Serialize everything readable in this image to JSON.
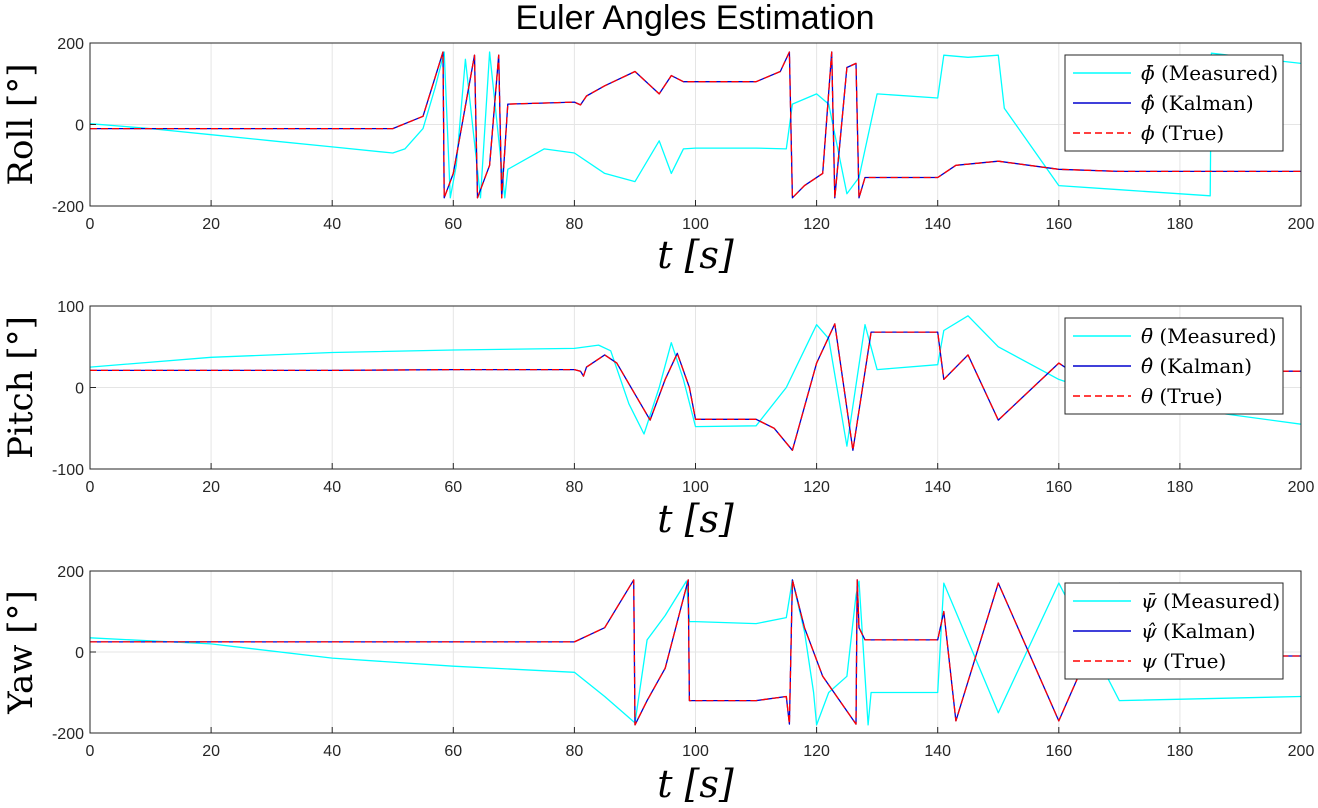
{
  "figure_title": "Euler Angles Estimation",
  "colors": {
    "measured": "#00ffff",
    "kalman": "#0000cd",
    "true": "#ff0000",
    "grid": "#e5e5e5",
    "axis": "#262626"
  },
  "chart_data": [
    {
      "type": "line",
      "title": "Euler Angles Estimation",
      "xlabel": "t [s]",
      "ylabel": "Roll [°]",
      "xlim": [
        0,
        200
      ],
      "ylim": [
        -200,
        200
      ],
      "xticks": [
        0,
        20,
        40,
        60,
        80,
        100,
        120,
        140,
        160,
        180,
        200
      ],
      "yticks": [
        -200,
        0,
        200
      ],
      "grid": true,
      "legend_position": "top-right",
      "series": [
        {
          "name": "ϕ̄ (Measured)",
          "symbol": "ϕ",
          "accent": "̄",
          "text": " (Measured)",
          "style": "measured",
          "x": [
            0,
            10,
            20,
            30,
            40,
            50,
            52,
            55,
            57,
            58.5,
            59.5,
            60.5,
            62,
            64.5,
            66,
            68.5,
            69,
            75,
            80,
            85,
            90,
            94,
            96,
            98,
            100,
            110,
            115,
            116,
            120,
            122,
            125,
            127,
            130,
            140,
            141,
            145,
            150,
            151,
            160,
            170,
            185,
            185.2,
            200
          ],
          "y": [
            2,
            -10,
            -25,
            -40,
            -55,
            -70,
            -60,
            -10,
            90,
            178,
            -180,
            -100,
            160,
            -180,
            178,
            -180,
            -110,
            -60,
            -70,
            -120,
            -140,
            -40,
            -120,
            -60,
            -58,
            -58,
            -60,
            50,
            75,
            50,
            -170,
            -130,
            75,
            65,
            170,
            165,
            170,
            40,
            -150,
            -160,
            -175,
            175,
            150
          ]
        },
        {
          "name": "ϕ̂ (Kalman)",
          "symbol": "ϕ",
          "accent": "̂",
          "text": " (Kalman)",
          "style": "kalman",
          "x": [
            0,
            20,
            40,
            50,
            55,
            58.3,
            58.5,
            60,
            63.5,
            64,
            66,
            67.5,
            68,
            69,
            80,
            81,
            82,
            85,
            90,
            94,
            96,
            98,
            100,
            110,
            114,
            115.5,
            116,
            118,
            121,
            122.5,
            123,
            125,
            126.5,
            127,
            128,
            130,
            140,
            141,
            143,
            150,
            160,
            170,
            175,
            200
          ],
          "y": [
            -10,
            -10,
            -10,
            -10,
            20,
            178,
            -180,
            -120,
            170,
            -180,
            -100,
            170,
            -180,
            50,
            55,
            48,
            70,
            95,
            130,
            75,
            120,
            105,
            105,
            105,
            130,
            178,
            -180,
            -150,
            -120,
            178,
            -180,
            140,
            150,
            -180,
            -130,
            -130,
            -130,
            -120,
            -100,
            -90,
            -110,
            -115,
            -115,
            -115
          ]
        },
        {
          "name": "ϕ (True)",
          "symbol": "ϕ",
          "accent": "",
          "text": " (True)",
          "style": "true",
          "x": [
            0,
            20,
            40,
            50,
            55,
            58.3,
            58.5,
            60,
            63.5,
            64,
            66,
            67.5,
            68,
            69,
            80,
            81,
            82,
            85,
            90,
            94,
            96,
            98,
            100,
            110,
            114,
            115.5,
            116,
            118,
            121,
            122.5,
            123,
            125,
            126.5,
            127,
            128,
            130,
            140,
            141,
            143,
            150,
            160,
            170,
            175,
            200
          ],
          "y": [
            -10,
            -10,
            -10,
            -10,
            20,
            178,
            -180,
            -120,
            170,
            -180,
            -100,
            170,
            -180,
            50,
            55,
            48,
            70,
            95,
            130,
            75,
            120,
            105,
            105,
            105,
            130,
            178,
            -180,
            -150,
            -120,
            178,
            -180,
            140,
            150,
            -180,
            -130,
            -130,
            -130,
            -120,
            -100,
            -90,
            -110,
            -115,
            -115,
            -115
          ]
        }
      ]
    },
    {
      "type": "line",
      "xlabel": "t [s]",
      "ylabel": "Pitch [°]",
      "xlim": [
        0,
        200
      ],
      "ylim": [
        -100,
        100
      ],
      "xticks": [
        0,
        20,
        40,
        60,
        80,
        100,
        120,
        140,
        160,
        180,
        200
      ],
      "yticks": [
        -100,
        0,
        100
      ],
      "grid": true,
      "legend_position": "top-right",
      "series": [
        {
          "name": "θ̄ (Measured)",
          "symbol": "θ",
          "accent": "̄",
          "text": " (Measured)",
          "style": "measured",
          "x": [
            0,
            20,
            40,
            60,
            80,
            84,
            86,
            89,
            91.5,
            94,
            96,
            98,
            100,
            110,
            115,
            120,
            122,
            125,
            128,
            130,
            140,
            141,
            145,
            150,
            160,
            170,
            200
          ],
          "y": [
            25,
            37,
            43,
            46,
            48,
            52,
            45,
            -20,
            -57,
            0,
            55,
            10,
            -48,
            -47,
            0,
            77,
            60,
            -72,
            77,
            22,
            28,
            70,
            88,
            50,
            10,
            -15,
            -45
          ]
        },
        {
          "name": "θ̂ (Kalman)",
          "symbol": "θ",
          "accent": "̂",
          "text": " (Kalman)",
          "style": "kalman",
          "x": [
            0,
            20,
            40,
            60,
            80,
            81,
            81.5,
            82,
            85,
            87,
            92.5,
            95,
            97,
            99,
            100,
            110,
            113,
            116,
            120,
            123,
            126,
            129,
            130,
            140,
            141,
            145,
            150,
            160,
            170,
            175,
            200
          ],
          "y": [
            21,
            21,
            21,
            22,
            22,
            20,
            14,
            25,
            40,
            30,
            -40,
            10,
            42,
            0,
            -39,
            -39,
            -50,
            -77,
            30,
            78,
            -77,
            68,
            68,
            68,
            10,
            40,
            -40,
            30,
            -20,
            20,
            20
          ]
        },
        {
          "name": "θ (True)",
          "symbol": "θ",
          "accent": "",
          "text": " (True)",
          "style": "true",
          "x": [
            0,
            20,
            40,
            60,
            80,
            81,
            81.5,
            82,
            85,
            87,
            92.5,
            95,
            97,
            99,
            100,
            110,
            113,
            116,
            120,
            123,
            126,
            129,
            130,
            140,
            141,
            145,
            150,
            160,
            170,
            175,
            200
          ],
          "y": [
            21,
            21,
            21,
            22,
            22,
            20,
            14,
            25,
            40,
            30,
            -40,
            10,
            42,
            0,
            -39,
            -39,
            -50,
            -77,
            30,
            78,
            -77,
            68,
            68,
            68,
            10,
            40,
            -40,
            30,
            -20,
            20,
            20
          ]
        }
      ]
    },
    {
      "type": "line",
      "xlabel": "t [s]",
      "ylabel": "Yaw [°]",
      "xlim": [
        0,
        200
      ],
      "ylim": [
        -200,
        200
      ],
      "xticks": [
        0,
        20,
        40,
        60,
        80,
        100,
        120,
        140,
        160,
        180,
        200
      ],
      "yticks": [
        -200,
        0,
        200
      ],
      "grid": true,
      "legend_position": "top-right",
      "series": [
        {
          "name": "ψ̄ (Measured)",
          "symbol": "ψ",
          "accent": "̄",
          "text": " (Measured)",
          "style": "measured",
          "x": [
            0,
            20,
            40,
            60,
            80,
            85,
            90,
            92,
            95,
            98.5,
            99,
            100,
            110,
            115,
            116,
            118,
            119.5,
            120,
            122,
            125,
            126.5,
            127,
            128.5,
            129,
            130,
            140,
            141,
            150,
            160,
            170,
            200
          ],
          "y": [
            35,
            20,
            -15,
            -35,
            -50,
            -110,
            -175,
            30,
            90,
            175,
            75,
            75,
            70,
            85,
            178,
            50,
            -100,
            -180,
            -100,
            -60,
            140,
            175,
            -180,
            -100,
            -100,
            -100,
            170,
            -150,
            170,
            -120,
            -110
          ]
        },
        {
          "name": "ψ̂ (Kalman)",
          "symbol": "ψ",
          "accent": "̂",
          "text": " (Kalman)",
          "style": "kalman",
          "x": [
            0,
            20,
            40,
            60,
            80,
            85,
            89.8,
            90,
            92,
            95,
            98.8,
            99,
            100,
            110,
            115,
            115.5,
            116,
            118,
            121,
            126.5,
            126.7,
            127,
            128,
            130,
            140,
            141,
            143,
            150,
            160,
            170,
            175,
            200
          ],
          "y": [
            25,
            25,
            25,
            25,
            25,
            60,
            178,
            -180,
            -120,
            -40,
            178,
            -120,
            -120,
            -120,
            -110,
            -178,
            178,
            60,
            -60,
            -178,
            178,
            60,
            30,
            30,
            30,
            100,
            -170,
            170,
            -170,
            170,
            -10,
            -10
          ]
        },
        {
          "name": "ψ (True)",
          "symbol": "ψ",
          "accent": "",
          "text": " (True)",
          "style": "true",
          "x": [
            0,
            20,
            40,
            60,
            80,
            85,
            89.8,
            90,
            92,
            95,
            98.8,
            99,
            100,
            110,
            115,
            115.5,
            116,
            118,
            121,
            126.5,
            126.7,
            127,
            128,
            130,
            140,
            141,
            143,
            150,
            160,
            170,
            175,
            200
          ],
          "y": [
            25,
            25,
            25,
            25,
            25,
            60,
            178,
            -180,
            -120,
            -40,
            178,
            -120,
            -120,
            -120,
            -110,
            -178,
            178,
            60,
            -60,
            -178,
            178,
            60,
            30,
            30,
            30,
            100,
            -170,
            170,
            -170,
            170,
            -10,
            -10
          ]
        }
      ]
    }
  ]
}
